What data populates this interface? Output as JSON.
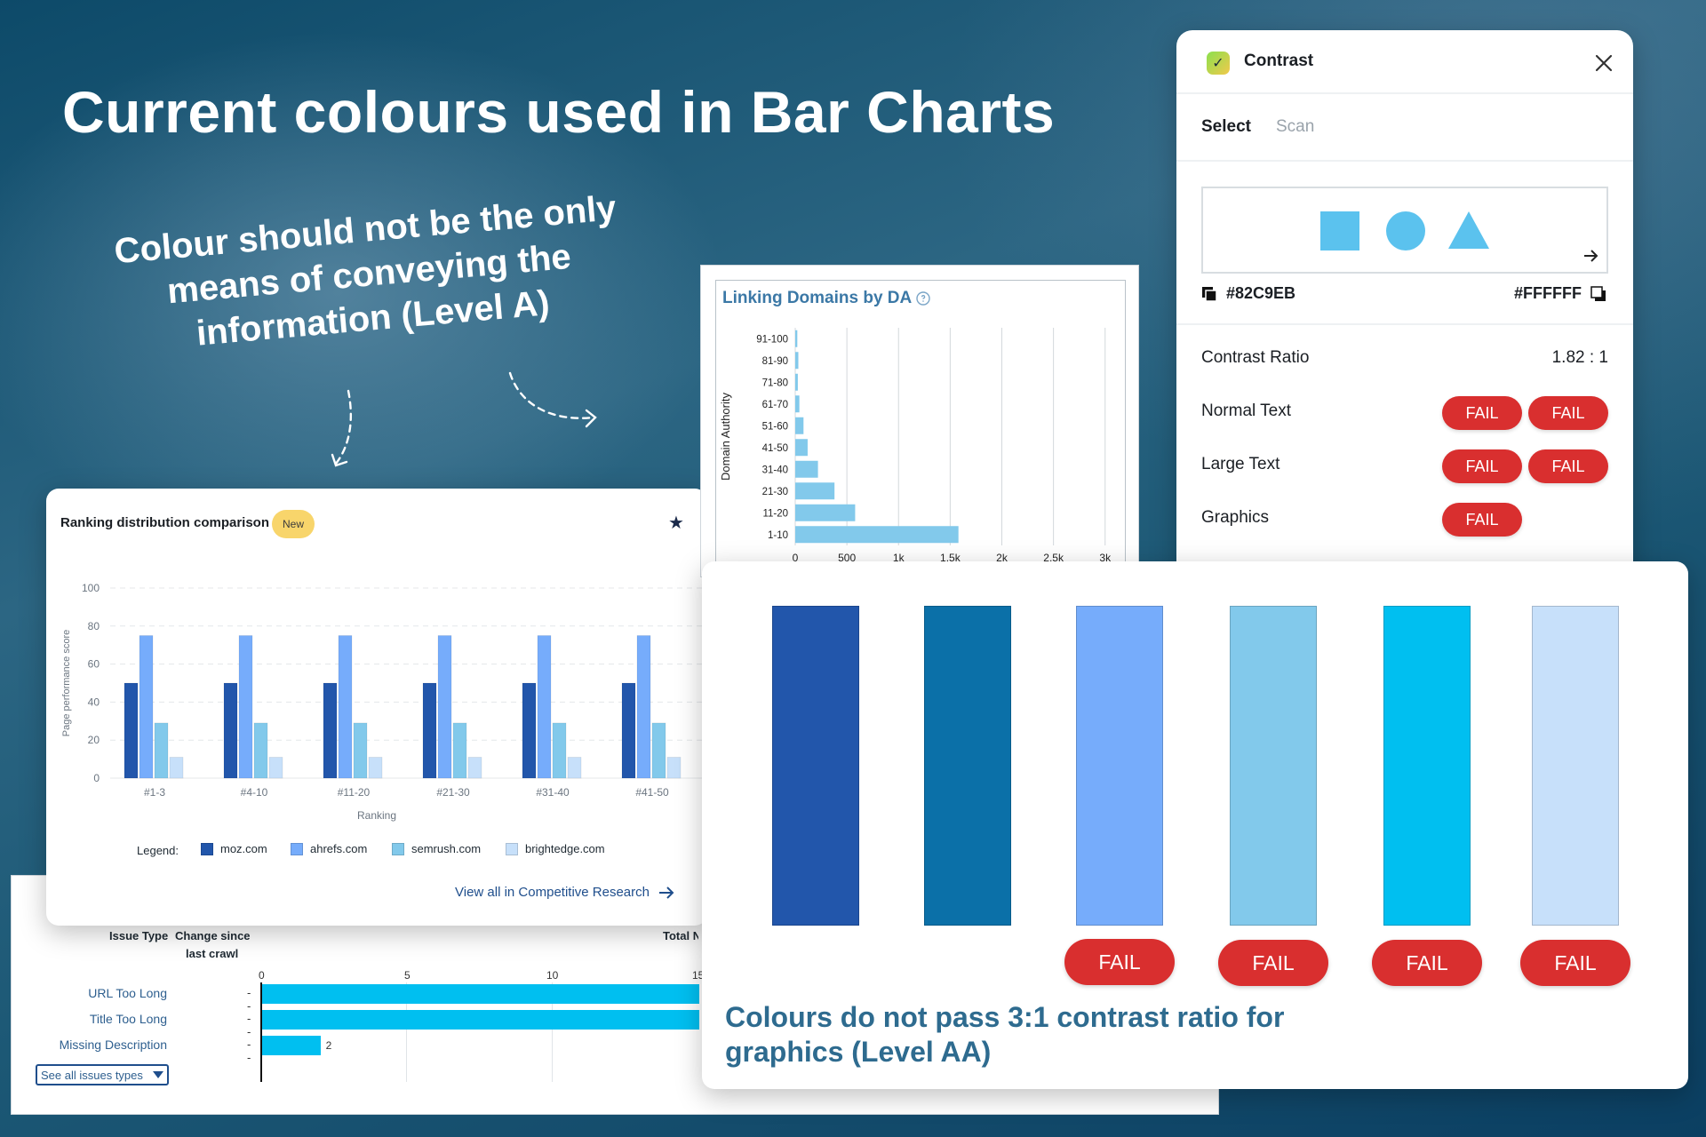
{
  "headline": "Current colours used in Bar Charts",
  "annotation_level_a": "Colour should not be the only means of conveying the information (Level A)",
  "annotation_level_aa": "Colours do not pass 3:1 contrast ratio for graphics (Level AA)",
  "colors": {
    "fail_red": "#d92f2f",
    "note_teal": "#2e6b8f"
  },
  "issues_table": {
    "headers": {
      "issue_type": "Issue Type",
      "change_since": "Change since",
      "last_crawl": "last crawl",
      "total": "Total N"
    },
    "axis_ticks": [
      "0",
      "5",
      "10",
      "15"
    ],
    "rows": [
      {
        "label": "URL Too Long",
        "change": "--",
        "value": 15
      },
      {
        "label": "Title Too Long",
        "change": "--",
        "value": 15
      },
      {
        "label": "Missing Description",
        "change": "--",
        "value": 2,
        "value_label": "2"
      }
    ],
    "see_all": "See all issues types",
    "bar_color": "#00bff0"
  },
  "ranking_card": {
    "title": "Ranking distribution comparison",
    "badge": "New",
    "star_icon": "star-icon",
    "legend_title": "Legend:",
    "link": "View all in Competitive Research",
    "link_icon": "arrow-right-icon"
  },
  "domains_card": {
    "title": "Linking Domains by DA",
    "help_icon": "help-circle-icon"
  },
  "contrast_panel": {
    "app_name": "Contrast",
    "logo_icon": "check-icon",
    "close_icon": "close-icon",
    "tabs": [
      "Select",
      "Scan"
    ],
    "foreground_hex": "#82C9EB",
    "background_hex": "#FFFFFF",
    "preview_color": "#5bc2ee",
    "contrast_label": "Contrast Ratio",
    "contrast_value": "1.82 : 1",
    "rows": [
      {
        "label": "Normal Text",
        "results": [
          "FAIL",
          "FAIL"
        ]
      },
      {
        "label": "Large Text",
        "results": [
          "FAIL",
          "FAIL"
        ]
      },
      {
        "label": "Graphics",
        "results": [
          "FAIL"
        ]
      }
    ]
  },
  "swatch_card": {
    "swatches": [
      {
        "color": "#2256ab",
        "result": ""
      },
      {
        "color": "#0b70a8",
        "result": ""
      },
      {
        "color": "#76acfb",
        "result": "FAIL"
      },
      {
        "color": "#82c9eb",
        "result": "FAIL"
      },
      {
        "color": "#00bff0",
        "result": "FAIL"
      },
      {
        "color": "#c7e0fa",
        "result": "FAIL"
      }
    ]
  },
  "chart_data": [
    {
      "type": "bar",
      "title": "Ranking distribution comparison",
      "xlabel": "Ranking",
      "ylabel": "Page performance score",
      "ylim": [
        0,
        100
      ],
      "yticks": [
        0,
        20,
        40,
        60,
        80,
        100
      ],
      "grid": true,
      "legend_position": "bottom",
      "categories": [
        "#1-3",
        "#4-10",
        "#11-20",
        "#21-30",
        "#31-40",
        "#41-50"
      ],
      "series": [
        {
          "name": "moz.com",
          "color": "#2256ab",
          "values": [
            50,
            50,
            50,
            50,
            50,
            50
          ]
        },
        {
          "name": "ahrefs.com",
          "color": "#76acfb",
          "values": [
            75,
            75,
            75,
            75,
            75,
            75
          ]
        },
        {
          "name": "semrush.com",
          "color": "#82c9eb",
          "values": [
            29,
            29,
            29,
            29,
            29,
            29
          ]
        },
        {
          "name": "brightedge.com",
          "color": "#c7e0fa",
          "values": [
            11,
            11,
            11,
            11,
            11,
            11
          ]
        }
      ]
    },
    {
      "type": "bar",
      "orientation": "horizontal",
      "title": "Linking Domains by DA",
      "ylabel": "Domain Authority",
      "categories": [
        "91-100",
        "81-90",
        "71-80",
        "61-70",
        "51-60",
        "41-50",
        "31-40",
        "21-30",
        "11-20",
        "1-10"
      ],
      "values": [
        20,
        30,
        25,
        40,
        80,
        120,
        220,
        380,
        580,
        1580
      ],
      "xlim": [
        0,
        3200
      ],
      "xticks": [
        0,
        500,
        1000,
        1500,
        2000,
        2500,
        3000
      ],
      "xtick_labels": [
        "0",
        "500",
        "1k",
        "1.5k",
        "2k",
        "2.5k",
        "3k"
      ],
      "grid": true,
      "color": "#82c9eb"
    }
  ]
}
